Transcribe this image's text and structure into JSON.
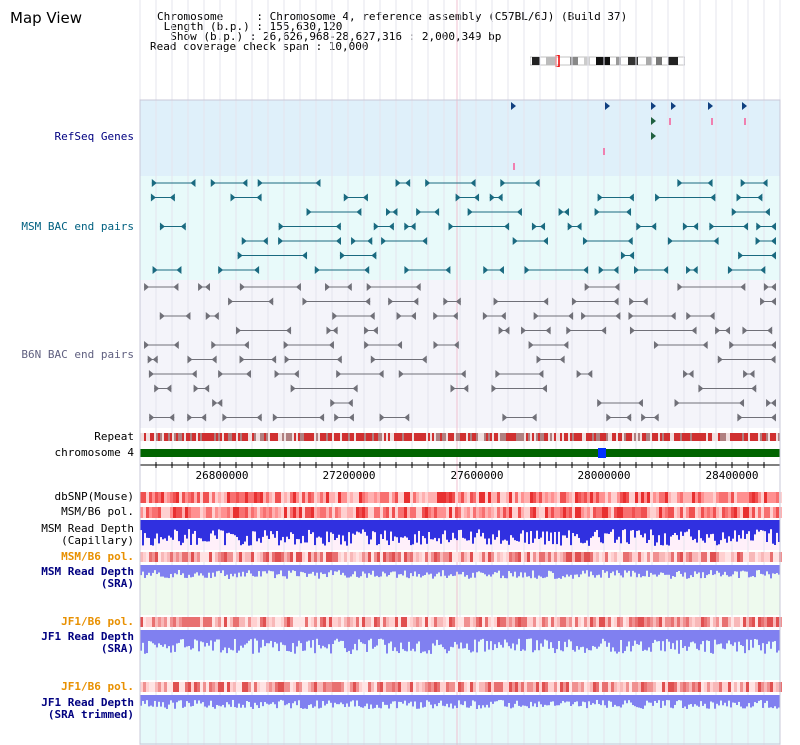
{
  "title": "Map View",
  "info": {
    "chromosome": "Chromosome     : Chromosome 4, reference assembly (C57BL/6J) (Build 37)",
    "length": " Length (b.p.) : 155,630,120",
    "show": "  Show (b.p.) : 26,626,968-28,627,316 : 2,000,349 bp",
    "coverage": "Read coverage check span : 10,000"
  },
  "tracks": {
    "refseq": "RefSeq Genes",
    "msm_bac": "MSM BAC end pairs",
    "b6n_bac": "B6N BAC end pairs",
    "repeat": "Repeat",
    "chromosome": "chromosome 4",
    "dbsnp": "dbSNP(Mouse)",
    "msm_b6_pol": "MSM/B6 pol.",
    "msm_read_depth_cap_1": "MSM Read Depth",
    "msm_read_depth_cap_2": "(Capillary)",
    "msm_b6_pol_2": "MSM/B6 pol.",
    "msm_read_depth_sra_1": "MSM Read Depth",
    "msm_read_depth_sra_2": "(SRA)",
    "jf1_b6_pol": "JF1/B6 pol.",
    "jf1_read_depth_1": "JF1 Read Depth",
    "jf1_read_depth_2": "(SRA)",
    "jf1_b6_pol_2": "JF1/B6 pol.",
    "jf1_read_depth_trim_1": "JF1 Read Depth",
    "jf1_read_depth_trim_2": "(SRA trimmed)"
  },
  "axis_ticks": [
    "26800000",
    "27200000",
    "27600000",
    "28000000",
    "28400000"
  ],
  "colors": {
    "refseq_bg": "#dff0fa",
    "msm_bac_bg": "#e8fafa",
    "b6n_bg": "#f4f4fa",
    "label_navy": "#000080",
    "label_teal": "#006080",
    "label_orange": "#e89000",
    "chrom_green": "#006400"
  },
  "icons": [
    "chromosome-ideogram-icon"
  ]
}
